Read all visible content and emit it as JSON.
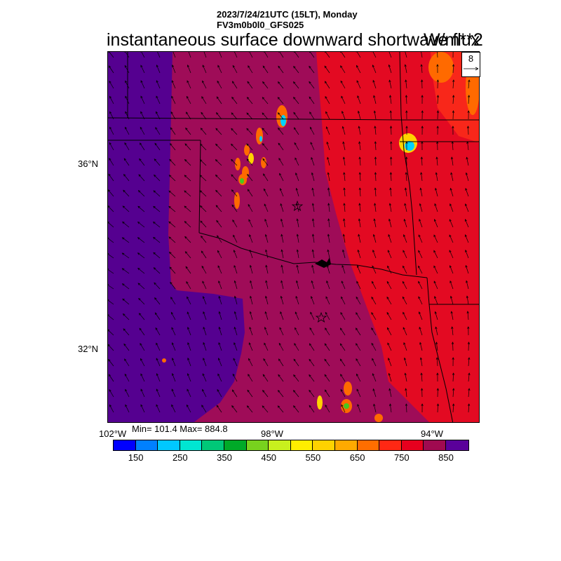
{
  "header": {
    "datetime": "2023/7/24/21UTC (15LT), Monday",
    "model": "FV3m0b0l0_GFS025",
    "title": "instantaneous surface downward shortwave flux",
    "units": "W/m**2"
  },
  "map": {
    "lat_labels": [
      "36°N",
      "32°N"
    ],
    "lon_labels": [
      "102°W",
      "98°W",
      "94°W"
    ],
    "field_colors": {
      "deep_purple": "#550090",
      "maroon": "#9f0c58",
      "red": "#e30a22",
      "red_orange": "#f8271a",
      "orange": "#ff6a00",
      "yellow": "#ffd200",
      "green": "#48c820",
      "cyan": "#00d2ff",
      "blue": "#0064ff"
    },
    "city_markers": [
      "star-oklahoma-city",
      "star-dallas-fort-worth"
    ]
  },
  "vector_reference": {
    "value": "8"
  },
  "stats": {
    "text": "Min= 101.4 Max= 884.8"
  },
  "colorbar": {
    "colors": [
      "#0000ff",
      "#0080ff",
      "#00c8ff",
      "#00e6d2",
      "#00c878",
      "#00aa28",
      "#78d21e",
      "#c8f01e",
      "#ffee00",
      "#ffd200",
      "#ffaa00",
      "#ff6e00",
      "#ff2814",
      "#e6001e",
      "#a00a50",
      "#5a009a"
    ],
    "labels": [
      "150",
      "250",
      "350",
      "450",
      "550",
      "650",
      "750",
      "850"
    ]
  }
}
